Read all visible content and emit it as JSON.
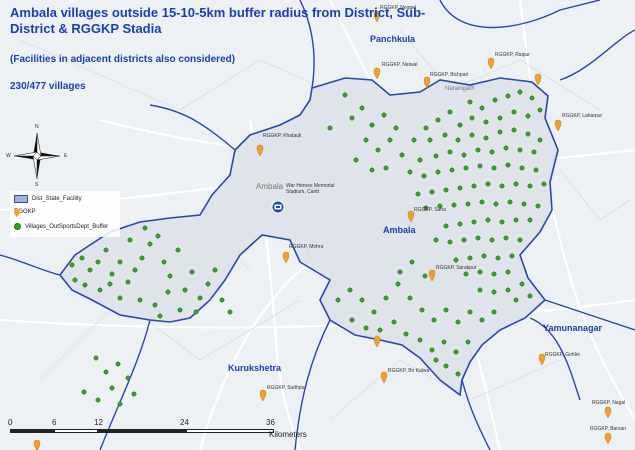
{
  "title": "Ambala villages outside 15-10-5km buffer radius from District, Sub-District & RGGKP Stadia",
  "subtitle": "(Facilities in adjacent districts also considered)",
  "village_count": "230/477 villages",
  "legend": {
    "items": [
      {
        "label": "Dist_State_Facility"
      },
      {
        "label": "RGGKP"
      },
      {
        "label": "Villages_OutSportsDept_Buffer"
      }
    ]
  },
  "regions": {
    "panchkula": "Panchkula",
    "ambala": "Ambala",
    "yamunanagar": "Yamunanagar",
    "kurukshetra": "Kurukshetra"
  },
  "compass_letters": {
    "n": "N",
    "s": "S",
    "e": "E",
    "w": "W"
  },
  "places": {
    "ambala_city": "Ambala",
    "naraingarh": "Naraingarh",
    "facility_name": "War Heroes Memorial Stadium, Cantt"
  },
  "rggkp_labels": [
    "RGGKP, Noggel",
    "RGGKP, Natwal",
    "RGGKP, Raipur",
    "RGGKP, Bichpari",
    "RGGKP, Laharpur",
    "RGGKP, Khatauli",
    "RGGKP, Saha",
    "RGGKP, Mohra",
    "RGGKP, Sarakpur",
    "RGGKP, Gohlni",
    "RGGKP, Nagal",
    "RGGKP, Barsan",
    "RGGKP, Bir Kalwa",
    "RGGKP, Sudhpur"
  ],
  "scale": {
    "ticks": [
      "0",
      "6",
      "12",
      "24",
      "36"
    ],
    "unit": "Kilometers"
  },
  "colors": {
    "boundary": "#2a48a8",
    "village": "#3a9e2a",
    "rggkp": "#f0a030",
    "title": "#1a3fb0"
  },
  "icons": {
    "facility": "stadium-icon",
    "rggkp": "map-pin-icon",
    "village": "dot-icon",
    "north_arrow": "compass-rose-icon"
  }
}
